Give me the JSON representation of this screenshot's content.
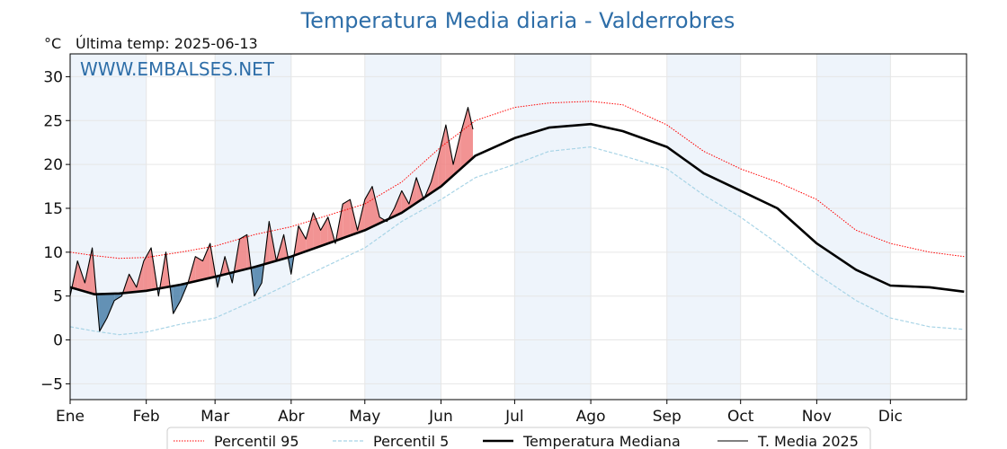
{
  "chart_data": {
    "type": "line",
    "title": "Temperatura Media diaria - Valderrobres",
    "unit_label": "°C",
    "subtitle": "Última temp: 2025-06-13",
    "watermark": "WWW.EMBALSES.NET",
    "xlabel": "",
    "ylabel": "",
    "ylim": [
      -6.8,
      32.6
    ],
    "y_ticks": [
      -5,
      0,
      5,
      10,
      15,
      20,
      25,
      30
    ],
    "y_tick_labels": [
      "−5",
      "0",
      "5",
      "10",
      "15",
      "20",
      "25",
      "30"
    ],
    "xlim": [
      0,
      365
    ],
    "month_starts": [
      0,
      31,
      59,
      90,
      120,
      151,
      181,
      212,
      243,
      273,
      304,
      334
    ],
    "month_labels": [
      "Ene",
      "Feb",
      "Mar",
      "Abr",
      "May",
      "Jun",
      "Jul",
      "Ago",
      "Sep",
      "Oct",
      "Nov",
      "Dic"
    ],
    "shaded_months": [
      0,
      2,
      4,
      6,
      8,
      10
    ],
    "grid": true,
    "legend_position": "bottom-center",
    "colors": {
      "p95": "#ff0000",
      "p5": "#a8d4e6",
      "median": "#000000",
      "current": "#000000",
      "above_fill": "#f08080",
      "below_fill": "#4a7fa8",
      "title": "#2e6ea8",
      "band": "#eef4fb"
    },
    "series": [
      {
        "name": "Percentil 95",
        "style": "dotted-red",
        "x": [
          0,
          10,
          20,
          31,
          45,
          59,
          75,
          90,
          105,
          120,
          135,
          151,
          165,
          181,
          195,
          212,
          225,
          243,
          258,
          273,
          288,
          304,
          320,
          334,
          350,
          364
        ],
        "values": [
          10.0,
          9.6,
          9.3,
          9.4,
          10.0,
          10.7,
          12.0,
          12.9,
          14.2,
          15.5,
          18.0,
          22.0,
          25.0,
          26.5,
          27.0,
          27.2,
          26.8,
          24.5,
          21.5,
          19.5,
          18.0,
          16.0,
          12.5,
          11.0,
          10.0,
          9.5
        ]
      },
      {
        "name": "Percentil 5",
        "style": "dashed-lightblue",
        "x": [
          0,
          10,
          20,
          31,
          45,
          59,
          75,
          90,
          105,
          120,
          135,
          151,
          165,
          181,
          195,
          212,
          225,
          243,
          258,
          273,
          288,
          304,
          320,
          334,
          350,
          364
        ],
        "values": [
          1.5,
          1.0,
          0.6,
          0.9,
          1.8,
          2.5,
          4.5,
          6.5,
          8.5,
          10.5,
          13.5,
          16.0,
          18.5,
          20.0,
          21.5,
          22.0,
          21.0,
          19.5,
          16.5,
          14.0,
          11.0,
          7.5,
          4.5,
          2.5,
          1.5,
          1.2
        ]
      },
      {
        "name": "Temperatura Mediana",
        "style": "thick-black",
        "x": [
          0,
          10,
          20,
          31,
          45,
          59,
          75,
          90,
          105,
          120,
          135,
          151,
          165,
          181,
          195,
          212,
          225,
          243,
          258,
          273,
          288,
          304,
          320,
          334,
          350,
          364
        ],
        "values": [
          6.0,
          5.2,
          5.3,
          5.6,
          6.3,
          7.2,
          8.3,
          9.5,
          11.0,
          12.5,
          14.5,
          17.5,
          21.0,
          23.0,
          24.2,
          24.6,
          23.8,
          22.0,
          19.0,
          17.0,
          15.0,
          11.0,
          8.0,
          6.2,
          6.0,
          5.5
        ]
      },
      {
        "name": "T. Media 2025",
        "style": "thin-black",
        "x": [
          0,
          3,
          6,
          9,
          12,
          15,
          18,
          21,
          24,
          27,
          30,
          33,
          36,
          39,
          42,
          45,
          48,
          51,
          54,
          57,
          60,
          63,
          66,
          69,
          72,
          75,
          78,
          81,
          84,
          87,
          90,
          93,
          96,
          99,
          102,
          105,
          108,
          111,
          114,
          117,
          120,
          123,
          126,
          129,
          132,
          135,
          138,
          141,
          144,
          147,
          150,
          153,
          156,
          159,
          162,
          164
        ],
        "values": [
          5.0,
          9.0,
          6.5,
          10.5,
          1.0,
          2.5,
          4.5,
          5.0,
          7.5,
          6.0,
          9.0,
          10.5,
          5.0,
          10.0,
          3.0,
          4.5,
          6.5,
          9.5,
          9.0,
          11.0,
          6.0,
          9.5,
          6.5,
          11.5,
          12.0,
          5.0,
          6.5,
          13.5,
          9.0,
          12.0,
          7.5,
          13.0,
          11.5,
          14.5,
          12.5,
          14.0,
          11.0,
          15.5,
          16.0,
          12.5,
          16.0,
          17.5,
          14.0,
          13.5,
          15.0,
          17.0,
          15.5,
          18.5,
          16.0,
          18.0,
          21.0,
          24.5,
          20.0,
          23.5,
          26.5,
          24.0
        ]
      }
    ]
  }
}
